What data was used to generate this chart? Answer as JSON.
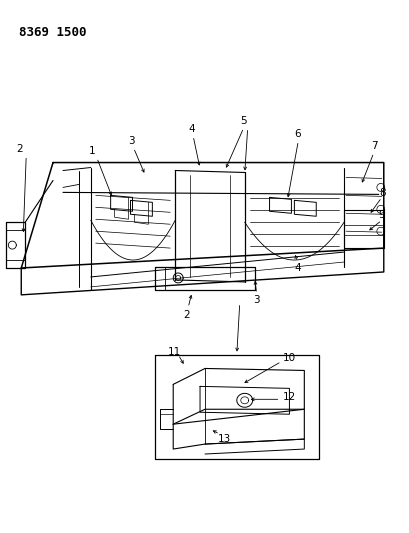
{
  "part_number": "8369 1500",
  "background_color": "#ffffff",
  "line_color": "#000000",
  "fig_width": 4.1,
  "fig_height": 5.33,
  "dpi": 100,
  "label_fontsize": 7.5,
  "part_number_fontsize": 9
}
